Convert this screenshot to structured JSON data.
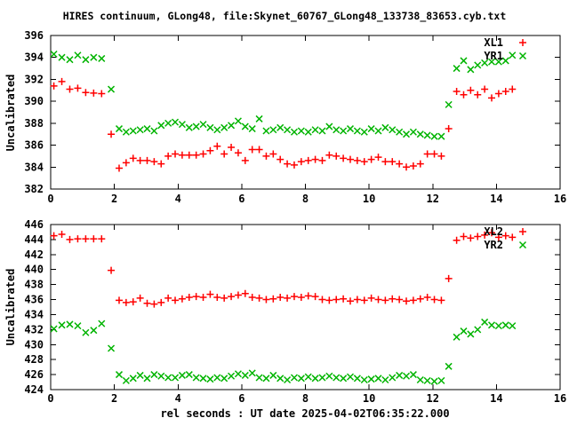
{
  "title": "HIRES continuum, GLong48, file:Skynet_60767_GLong48_133738_83653.cyb.txt",
  "xlabel": "rel seconds : UT date 2025-04-02T06:35:22.000",
  "colors": {
    "series_red": "#ff0000",
    "series_green": "#00b400",
    "axis": "#000000",
    "background": "#ffffff"
  },
  "chart_data": [
    {
      "type": "scatter",
      "ylabel": "Uncalibrated",
      "ylim": [
        382,
        396
      ],
      "ytick_step": 2,
      "xlim": [
        0,
        16
      ],
      "xtick_step": 2,
      "grid": false,
      "legend_position": "top-right-inside",
      "x": [
        0.1,
        0.35,
        0.6,
        0.85,
        1.1,
        1.35,
        1.6,
        1.9,
        2.15,
        2.37,
        2.59,
        2.81,
        3.03,
        3.25,
        3.47,
        3.69,
        3.91,
        4.13,
        4.35,
        4.57,
        4.79,
        5.01,
        5.23,
        5.45,
        5.67,
        5.89,
        6.11,
        6.33,
        6.55,
        6.77,
        6.99,
        7.21,
        7.43,
        7.65,
        7.87,
        8.09,
        8.31,
        8.53,
        8.75,
        8.97,
        9.19,
        9.41,
        9.63,
        9.85,
        10.07,
        10.29,
        10.51,
        10.73,
        10.95,
        11.17,
        11.39,
        11.61,
        11.83,
        12.05,
        12.27,
        12.5,
        12.75,
        12.97,
        13.19,
        13.41,
        13.63,
        13.85,
        14.07,
        14.29,
        14.5
      ],
      "series": [
        {
          "name": "XL1",
          "marker": "plus",
          "color": "#ff0000",
          "values": [
            391.4,
            391.8,
            391.1,
            391.2,
            390.8,
            390.75,
            390.7,
            387.0,
            383.9,
            384.4,
            384.8,
            384.6,
            384.6,
            384.5,
            384.3,
            385.0,
            385.2,
            385.1,
            385.1,
            385.1,
            385.2,
            385.5,
            385.9,
            385.2,
            385.8,
            385.3,
            384.6,
            385.6,
            385.6,
            385.0,
            385.2,
            384.7,
            384.3,
            384.2,
            384.5,
            384.6,
            384.7,
            384.6,
            385.1,
            385.0,
            384.8,
            384.7,
            384.6,
            384.5,
            384.7,
            384.9,
            384.5,
            384.5,
            384.3,
            384.0,
            384.1,
            384.3,
            385.2,
            385.2,
            385.0,
            387.5,
            390.9,
            390.6,
            391.0,
            390.6,
            391.1,
            390.3,
            390.7,
            390.9,
            391.1
          ]
        },
        {
          "name": "YR1",
          "marker": "cross",
          "color": "#00b400",
          "values": [
            394.3,
            394.0,
            393.8,
            394.2,
            393.8,
            394.0,
            393.9,
            391.1,
            387.5,
            387.2,
            387.3,
            387.4,
            387.5,
            387.3,
            387.8,
            388.0,
            388.1,
            387.9,
            387.6,
            387.7,
            387.9,
            387.6,
            387.4,
            387.6,
            387.8,
            388.2,
            387.7,
            387.5,
            388.4,
            387.3,
            387.4,
            387.6,
            387.4,
            387.2,
            387.3,
            387.2,
            387.4,
            387.3,
            387.7,
            387.4,
            387.3,
            387.5,
            387.3,
            387.2,
            387.5,
            387.3,
            387.6,
            387.4,
            387.2,
            387.0,
            387.2,
            387.0,
            386.9,
            386.8,
            386.8,
            389.7,
            393.0,
            393.7,
            392.9,
            393.3,
            393.5,
            393.6,
            393.6,
            393.7,
            394.2
          ]
        }
      ]
    },
    {
      "type": "scatter",
      "ylabel": "Uncalibrated",
      "ylim": [
        424,
        446
      ],
      "ytick_step": 2,
      "xlim": [
        0,
        16
      ],
      "xtick_step": 2,
      "grid": false,
      "legend_position": "top-right-inside",
      "x": [
        0.1,
        0.35,
        0.6,
        0.85,
        1.1,
        1.35,
        1.6,
        1.9,
        2.15,
        2.37,
        2.59,
        2.81,
        3.03,
        3.25,
        3.47,
        3.69,
        3.91,
        4.13,
        4.35,
        4.57,
        4.79,
        5.01,
        5.23,
        5.45,
        5.67,
        5.89,
        6.11,
        6.33,
        6.55,
        6.77,
        6.99,
        7.21,
        7.43,
        7.65,
        7.87,
        8.09,
        8.31,
        8.53,
        8.75,
        8.97,
        9.19,
        9.41,
        9.63,
        9.85,
        10.07,
        10.29,
        10.51,
        10.73,
        10.95,
        11.17,
        11.39,
        11.61,
        11.83,
        12.05,
        12.27,
        12.5,
        12.75,
        12.97,
        13.19,
        13.41,
        13.63,
        13.85,
        14.07,
        14.29,
        14.5
      ],
      "series": [
        {
          "name": "XL2",
          "marker": "plus",
          "color": "#ff0000",
          "values": [
            444.5,
            444.7,
            444.0,
            444.1,
            444.1,
            444.1,
            444.1,
            439.9,
            435.9,
            435.6,
            435.7,
            436.2,
            435.5,
            435.4,
            435.6,
            436.2,
            435.9,
            436.1,
            436.3,
            436.4,
            436.3,
            436.7,
            436.3,
            436.2,
            436.4,
            436.6,
            436.8,
            436.3,
            436.2,
            436.0,
            436.1,
            436.3,
            436.2,
            436.4,
            436.3,
            436.5,
            436.4,
            436.0,
            435.9,
            436.0,
            436.1,
            435.8,
            436.0,
            435.9,
            436.2,
            436.0,
            435.9,
            436.1,
            436.0,
            435.8,
            435.9,
            436.1,
            436.3,
            436.0,
            435.9,
            438.8,
            443.9,
            444.4,
            444.2,
            444.4,
            444.6,
            444.9,
            444.3,
            444.5,
            444.3
          ]
        },
        {
          "name": "YR2",
          "marker": "cross",
          "color": "#00b400",
          "values": [
            432.1,
            432.6,
            432.7,
            432.5,
            431.6,
            431.9,
            432.8,
            429.5,
            426.0,
            425.2,
            425.5,
            425.9,
            425.5,
            426.0,
            425.8,
            425.6,
            425.6,
            425.9,
            426.0,
            425.6,
            425.5,
            425.4,
            425.6,
            425.5,
            425.8,
            426.1,
            425.9,
            426.2,
            425.6,
            425.5,
            425.9,
            425.5,
            425.3,
            425.6,
            425.5,
            425.7,
            425.5,
            425.6,
            425.8,
            425.6,
            425.5,
            425.7,
            425.5,
            425.3,
            425.4,
            425.5,
            425.3,
            425.6,
            425.9,
            425.8,
            426.0,
            425.3,
            425.2,
            425.1,
            425.2,
            427.1,
            431.0,
            431.8,
            431.4,
            432.0,
            433.0,
            432.6,
            432.5,
            432.6,
            432.5
          ]
        }
      ]
    }
  ]
}
